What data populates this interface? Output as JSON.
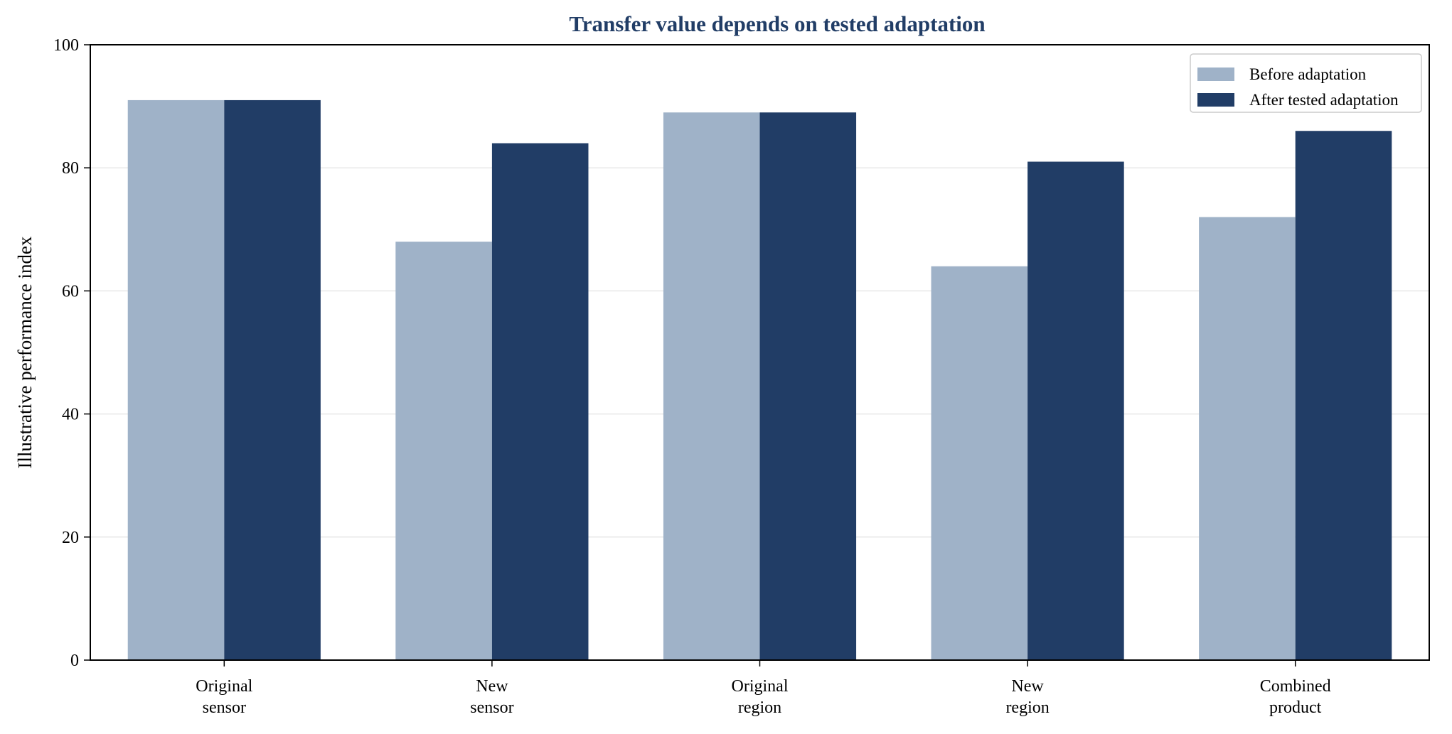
{
  "chart_data": {
    "type": "bar",
    "title": "Transfer value depends on tested adaptation",
    "xlabel": "",
    "ylabel": "Illustrative performance index",
    "categories": [
      [
        "Original",
        "sensor"
      ],
      [
        "New",
        "sensor"
      ],
      [
        "Original",
        "region"
      ],
      [
        "New",
        "region"
      ],
      [
        "Combined",
        "product"
      ]
    ],
    "series": [
      {
        "name": "Before adaptation",
        "values": [
          91,
          68,
          89,
          64,
          72
        ],
        "color": "#9fb2c8"
      },
      {
        "name": "After tested adaptation",
        "values": [
          91,
          84,
          89,
          81,
          86
        ],
        "color": "#213d66"
      }
    ],
    "ylim": [
      0,
      100
    ],
    "yticks": [
      0,
      20,
      40,
      60,
      80,
      100
    ],
    "grid": "horizontal",
    "legend_position": "top-right",
    "title_color": "#213d66"
  }
}
